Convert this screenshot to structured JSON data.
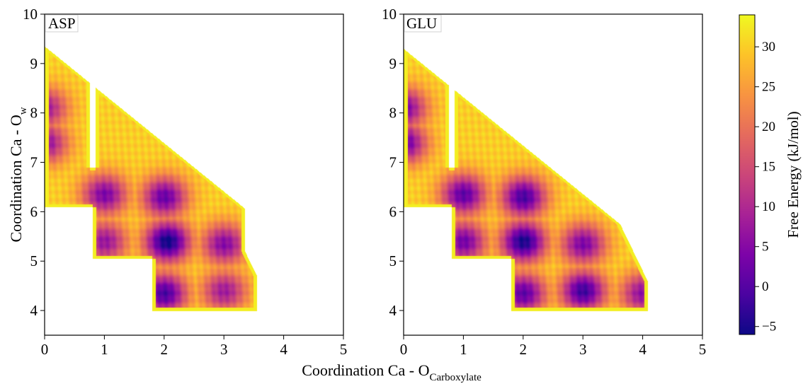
{
  "figure": {
    "xlabel_main": "Coordination Ca - O",
    "xlabel_sub": "Carboxylate",
    "ylabel_main": "Coordination Ca - O",
    "ylabel_sub": "w"
  },
  "colorbar": {
    "label": "Free Energy (kJ/mol)",
    "colormap": "plasma",
    "range": [
      -6,
      34
    ],
    "ticks": [
      -5,
      0,
      5,
      10,
      15,
      20,
      25,
      30
    ],
    "tick_labels": [
      "−5",
      "0",
      "5",
      "10",
      "15",
      "20",
      "25",
      "30"
    ]
  },
  "chart_data": [
    {
      "type": "heatmap",
      "title": "ASP",
      "xlabel": "Coordination Ca - O_Carboxylate",
      "ylabel": "Coordination Ca - O_w",
      "xlim": [
        0,
        5
      ],
      "ylim": [
        3.5,
        10
      ],
      "xticks": [
        0,
        1,
        2,
        3,
        4,
        5
      ],
      "yticks": [
        4,
        5,
        6,
        7,
        8,
        9,
        10
      ],
      "xtick_labels": [
        "0",
        "1",
        "2",
        "3",
        "4",
        "5"
      ],
      "ytick_labels": [
        "4",
        "5",
        "6",
        "7",
        "8",
        "9",
        "10"
      ],
      "zlabel": "Free Energy (kJ/mol)",
      "zrange": [
        -6,
        34
      ],
      "minima": [
        {
          "x": 0.0,
          "y": 7.4,
          "z": 6
        },
        {
          "x": 0.0,
          "y": 8.1,
          "z": 8
        },
        {
          "x": 1.0,
          "y": 6.35,
          "z": 4
        },
        {
          "x": 1.0,
          "y": 5.4,
          "z": 7
        },
        {
          "x": 2.0,
          "y": 6.3,
          "z": 2
        },
        {
          "x": 2.05,
          "y": 5.4,
          "z": -6
        },
        {
          "x": 2.0,
          "y": 4.35,
          "z": -1
        },
        {
          "x": 3.0,
          "y": 5.35,
          "z": 5
        },
        {
          "x": 3.0,
          "y": 4.4,
          "z": 8
        }
      ]
    },
    {
      "type": "heatmap",
      "title": "GLU",
      "xlabel": "Coordination Ca - O_Carboxylate",
      "ylabel": "Coordination Ca - O_w",
      "xlim": [
        0,
        5
      ],
      "ylim": [
        3.5,
        10
      ],
      "xticks": [
        0,
        1,
        2,
        3,
        4,
        5
      ],
      "yticks": [
        4,
        5,
        6,
        7,
        8,
        9,
        10
      ],
      "xtick_labels": [
        "0",
        "1",
        "2",
        "3",
        "4",
        "5"
      ],
      "ytick_labels": [
        "4",
        "5",
        "6",
        "7",
        "8",
        "9",
        "10"
      ],
      "zlabel": "Free Energy (kJ/mol)",
      "zrange": [
        -6,
        34
      ],
      "minima": [
        {
          "x": 0.0,
          "y": 7.4,
          "z": 2
        },
        {
          "x": 0.0,
          "y": 8.1,
          "z": 4
        },
        {
          "x": 1.0,
          "y": 6.35,
          "z": 1
        },
        {
          "x": 1.0,
          "y": 5.4,
          "z": 3
        },
        {
          "x": 2.0,
          "y": 6.3,
          "z": -1
        },
        {
          "x": 2.0,
          "y": 5.4,
          "z": -5
        },
        {
          "x": 2.0,
          "y": 4.35,
          "z": 1
        },
        {
          "x": 3.0,
          "y": 5.35,
          "z": 4
        },
        {
          "x": 3.0,
          "y": 4.4,
          "z": -2
        },
        {
          "x": 4.0,
          "y": 4.35,
          "z": 6
        }
      ]
    }
  ]
}
